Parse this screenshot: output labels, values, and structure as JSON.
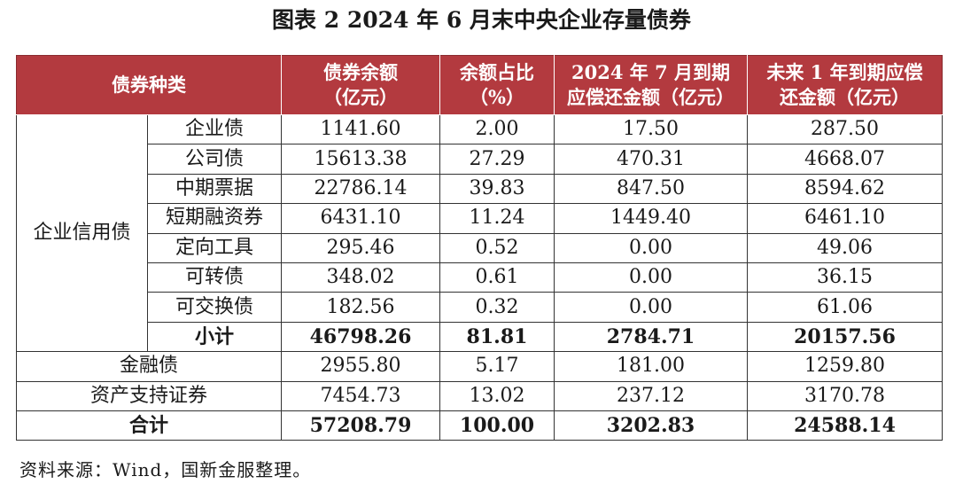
{
  "title": "图表 2  2024 年 6 月末中央企业存量债券",
  "table": {
    "headers": {
      "category": "债券种类",
      "balance": [
        "债券余额",
        "（亿元）"
      ],
      "share": [
        "余额占比",
        "（%）"
      ],
      "due_july": [
        "2024 年 7 月到期",
        "应偿还金额（亿元）"
      ],
      "due_year": [
        "未来 1 年到期应偿",
        "还金额（亿元）"
      ]
    },
    "group_label": "企业信用债",
    "group_rows": [
      {
        "name": "企业债",
        "balance": "1141.60",
        "share": "2.00",
        "due_july": "17.50",
        "due_year": "287.50"
      },
      {
        "name": "公司债",
        "balance": "15613.38",
        "share": "27.29",
        "due_july": "470.31",
        "due_year": "4668.07"
      },
      {
        "name": "中期票据",
        "balance": "22786.14",
        "share": "39.83",
        "due_july": "847.50",
        "due_year": "8594.62"
      },
      {
        "name": "短期融资券",
        "balance": "6431.10",
        "share": "11.24",
        "due_july": "1449.40",
        "due_year": "6461.10"
      },
      {
        "name": "定向工具",
        "balance": "295.46",
        "share": "0.52",
        "due_july": "0.00",
        "due_year": "49.06"
      },
      {
        "name": "可转债",
        "balance": "348.02",
        "share": "0.61",
        "due_july": "0.00",
        "due_year": "36.15"
      },
      {
        "name": "可交换债",
        "balance": "182.56",
        "share": "0.32",
        "due_july": "0.00",
        "due_year": "61.06"
      }
    ],
    "subtotal": {
      "name": "小计",
      "balance": "46798.26",
      "share": "81.81",
      "due_july": "2784.71",
      "due_year": "20157.56"
    },
    "other_rows": [
      {
        "name": "金融债",
        "balance": "2955.80",
        "share": "5.17",
        "due_july": "181.00",
        "due_year": "1259.80"
      },
      {
        "name": "资产支持证券",
        "balance": "7454.73",
        "share": "13.02",
        "due_july": "237.12",
        "due_year": "3170.78"
      }
    ],
    "total": {
      "name": "合计",
      "balance": "57208.79",
      "share": "100.00",
      "due_july": "3202.83",
      "due_year": "24588.14"
    }
  },
  "source": "资料来源：Wind，国新金服整理。"
}
